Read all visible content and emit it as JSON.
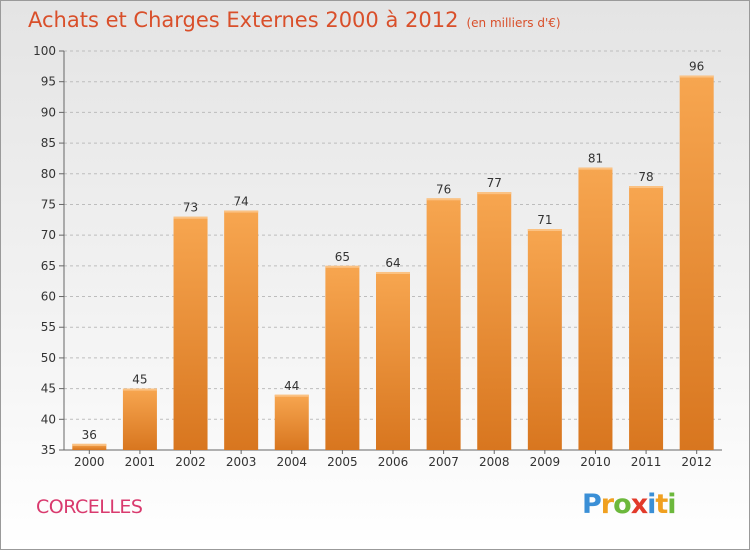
{
  "chart_data": {
    "type": "bar",
    "title": "Achats et Charges Externes 2000 à 2012",
    "subtitle": "(en milliers d'€)",
    "categories": [
      "2000",
      "2001",
      "2002",
      "2003",
      "2004",
      "2005",
      "2006",
      "2007",
      "2008",
      "2009",
      "2010",
      "2011",
      "2012"
    ],
    "values": [
      36,
      45,
      73,
      74,
      44,
      65,
      64,
      76,
      77,
      71,
      81,
      78,
      96
    ],
    "ylim": [
      35,
      100
    ],
    "yticks": [
      35,
      40,
      45,
      50,
      55,
      60,
      65,
      70,
      75,
      80,
      85,
      90,
      95,
      100
    ],
    "grid": true,
    "bar_color": "#f0922e"
  },
  "footer": {
    "commune": "CORCELLES",
    "logo": "Proxiti"
  }
}
